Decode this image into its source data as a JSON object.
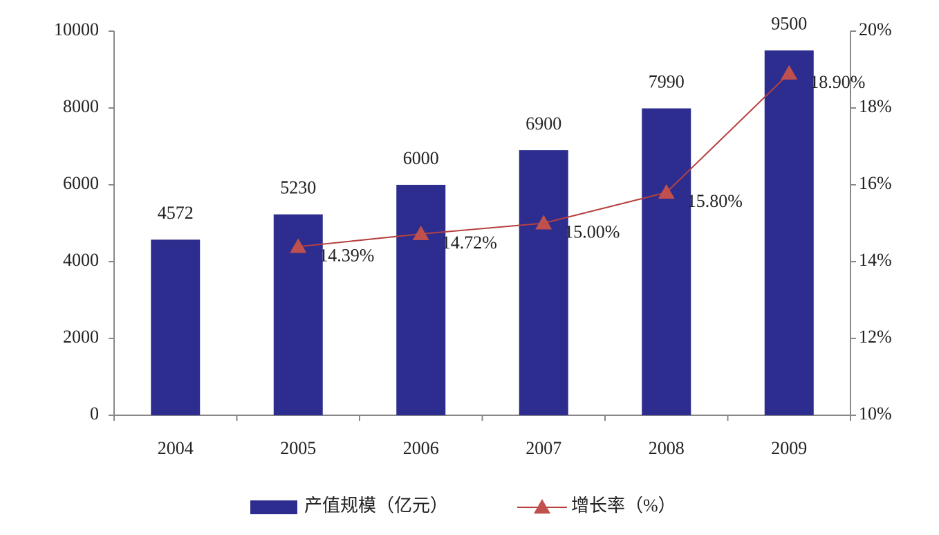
{
  "chart_data": {
    "type": "bar",
    "categories": [
      "2004",
      "2005",
      "2006",
      "2007",
      "2008",
      "2009"
    ],
    "series": [
      {
        "name": "产值规模（亿元）",
        "color": "#2d2d8f",
        "values": [
          4572,
          5230,
          6000,
          6900,
          7990,
          9500
        ]
      },
      {
        "name": "增长率（%）",
        "color": "#b5413f",
        "type": "line",
        "axis": "y2",
        "values": [
          null,
          14.39,
          14.72,
          15.0,
          15.8,
          18.9
        ],
        "value_labels": [
          null,
          "14.39%",
          "14.72%",
          "15.00%",
          "15.80%",
          "18.90%"
        ]
      }
    ],
    "ylim": [
      0,
      10000
    ],
    "yticks": [
      0,
      2000,
      4000,
      6000,
      8000,
      10000
    ],
    "y2lim": [
      10,
      20
    ],
    "y2ticks": [
      {
        "value": 10,
        "label": "10%"
      },
      {
        "value": 12,
        "label": "12%"
      },
      {
        "value": 14,
        "label": "14%"
      },
      {
        "value": 16,
        "label": "16%"
      },
      {
        "value": 18,
        "label": "18%"
      },
      {
        "value": 20,
        "label": "20%"
      }
    ],
    "legend": "bottom"
  }
}
